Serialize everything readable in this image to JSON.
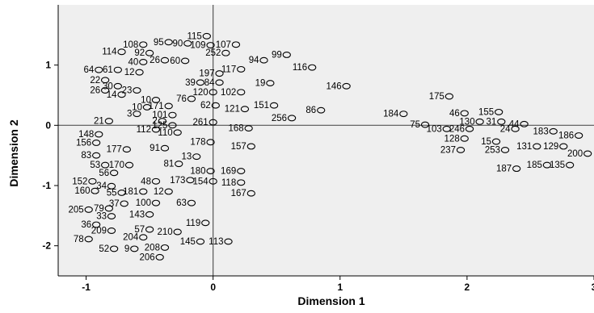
{
  "chart_data": {
    "type": "scatter",
    "title": "",
    "xlabel": "Dimension 1",
    "ylabel": "Dimension 2",
    "xlim": [
      -1.22,
      3.0
    ],
    "ylim": [
      -2.5,
      2.0
    ],
    "xticks": [
      -1,
      0,
      1,
      2,
      3
    ],
    "yticks": [
      -2,
      -1,
      0,
      1
    ],
    "reference_lines": {
      "x": 0,
      "y": 0
    },
    "plot_background": "#efefef",
    "marker_color": "#000000",
    "grid": false,
    "points": [
      {
        "label": "115",
        "x": -0.05,
        "y": 1.48
      },
      {
        "label": "108",
        "x": -0.55,
        "y": 1.34
      },
      {
        "label": "95",
        "x": -0.35,
        "y": 1.38
      },
      {
        "label": "90",
        "x": -0.2,
        "y": 1.36
      },
      {
        "label": "109",
        "x": -0.02,
        "y": 1.33
      },
      {
        "label": "107",
        "x": 0.18,
        "y": 1.34
      },
      {
        "label": "114",
        "x": -0.72,
        "y": 1.22
      },
      {
        "label": "92",
        "x": -0.5,
        "y": 1.2
      },
      {
        "label": "252",
        "x": 0.1,
        "y": 1.2
      },
      {
        "label": "99",
        "x": 0.58,
        "y": 1.17
      },
      {
        "label": "40",
        "x": -0.55,
        "y": 1.05
      },
      {
        "label": "26",
        "x": -0.38,
        "y": 1.08
      },
      {
        "label": "60",
        "x": -0.22,
        "y": 1.07
      },
      {
        "label": "94",
        "x": 0.4,
        "y": 1.08
      },
      {
        "label": "64",
        "x": -0.9,
        "y": 0.92
      },
      {
        "label": "61",
        "x": -0.75,
        "y": 0.92
      },
      {
        "label": "117",
        "x": 0.22,
        "y": 0.93
      },
      {
        "label": "116",
        "x": 0.78,
        "y": 0.96
      },
      {
        "label": "12",
        "x": -0.58,
        "y": 0.88
      },
      {
        "label": "197",
        "x": 0.05,
        "y": 0.86
      },
      {
        "label": "22",
        "x": -0.85,
        "y": 0.75
      },
      {
        "label": "39",
        "x": -0.1,
        "y": 0.71
      },
      {
        "label": "84",
        "x": 0.05,
        "y": 0.71
      },
      {
        "label": "19",
        "x": 0.45,
        "y": 0.7
      },
      {
        "label": "30",
        "x": -0.75,
        "y": 0.65
      },
      {
        "label": "23",
        "x": -0.6,
        "y": 0.58
      },
      {
        "label": "146",
        "x": 1.05,
        "y": 0.65
      },
      {
        "label": "26",
        "x": -0.85,
        "y": 0.58
      },
      {
        "label": "14",
        "x": -0.72,
        "y": 0.51
      },
      {
        "label": "120",
        "x": 0.0,
        "y": 0.55
      },
      {
        "label": "102",
        "x": 0.22,
        "y": 0.55
      },
      {
        "label": "175",
        "x": 1.86,
        "y": 0.48
      },
      {
        "label": "10",
        "x": -0.45,
        "y": 0.42
      },
      {
        "label": "76",
        "x": -0.17,
        "y": 0.44
      },
      {
        "label": "10",
        "x": -0.52,
        "y": 0.3
      },
      {
        "label": "171",
        "x": -0.35,
        "y": 0.32
      },
      {
        "label": "62",
        "x": 0.02,
        "y": 0.33
      },
      {
        "label": "151",
        "x": 0.48,
        "y": 0.33
      },
      {
        "label": "121",
        "x": 0.25,
        "y": 0.27
      },
      {
        "label": "86",
        "x": 0.85,
        "y": 0.25
      },
      {
        "label": "184",
        "x": 1.5,
        "y": 0.19
      },
      {
        "label": "46",
        "x": 1.98,
        "y": 0.2
      },
      {
        "label": "155",
        "x": 2.25,
        "y": 0.22
      },
      {
        "label": "3",
        "x": -0.6,
        "y": 0.19
      },
      {
        "label": "101",
        "x": -0.32,
        "y": 0.17
      },
      {
        "label": "256",
        "x": 0.62,
        "y": 0.12
      },
      {
        "label": "21",
        "x": -0.82,
        "y": 0.07
      },
      {
        "label": "2",
        "x": -0.4,
        "y": 0.07
      },
      {
        "label": "125",
        "x": -0.32,
        "y": 0.0
      },
      {
        "label": "261",
        "x": 0.0,
        "y": 0.05
      },
      {
        "label": "75",
        "x": 1.67,
        "y": 0.01
      },
      {
        "label": "130",
        "x": 2.1,
        "y": 0.06
      },
      {
        "label": "31",
        "x": 2.27,
        "y": 0.06
      },
      {
        "label": "44",
        "x": 2.45,
        "y": 0.02
      },
      {
        "label": "112",
        "x": -0.45,
        "y": -0.07
      },
      {
        "label": "110",
        "x": -0.28,
        "y": -0.12
      },
      {
        "label": "168",
        "x": 0.28,
        "y": -0.05
      },
      {
        "label": "103",
        "x": 1.84,
        "y": -0.06
      },
      {
        "label": "246",
        "x": 2.02,
        "y": -0.06
      },
      {
        "label": "24",
        "x": 2.38,
        "y": -0.06
      },
      {
        "label": "148",
        "x": -0.9,
        "y": -0.15
      },
      {
        "label": "183",
        "x": 2.68,
        "y": -0.1
      },
      {
        "label": "186",
        "x": 2.88,
        "y": -0.17
      },
      {
        "label": "156",
        "x": -0.92,
        "y": -0.29
      },
      {
        "label": "178",
        "x": -0.02,
        "y": -0.28
      },
      {
        "label": "128",
        "x": 1.98,
        "y": -0.22
      },
      {
        "label": "15",
        "x": 2.23,
        "y": -0.27
      },
      {
        "label": "157",
        "x": 0.3,
        "y": -0.35
      },
      {
        "label": "177",
        "x": -0.68,
        "y": -0.4
      },
      {
        "label": "91",
        "x": -0.38,
        "y": -0.38
      },
      {
        "label": "237",
        "x": 1.95,
        "y": -0.41
      },
      {
        "label": "253",
        "x": 2.3,
        "y": -0.41
      },
      {
        "label": "131",
        "x": 2.55,
        "y": -0.35
      },
      {
        "label": "129",
        "x": 2.76,
        "y": -0.35
      },
      {
        "label": "200",
        "x": 2.95,
        "y": -0.47
      },
      {
        "label": "83",
        "x": -0.92,
        "y": -0.5
      },
      {
        "label": "13",
        "x": -0.13,
        "y": -0.52
      },
      {
        "label": "53",
        "x": -0.85,
        "y": -0.66
      },
      {
        "label": "170",
        "x": -0.66,
        "y": -0.66
      },
      {
        "label": "81",
        "x": -0.27,
        "y": -0.64
      },
      {
        "label": "187",
        "x": 2.39,
        "y": -0.72
      },
      {
        "label": "185",
        "x": 2.63,
        "y": -0.66
      },
      {
        "label": "135",
        "x": 2.81,
        "y": -0.66
      },
      {
        "label": "56",
        "x": -0.78,
        "y": -0.79
      },
      {
        "label": "180",
        "x": -0.02,
        "y": -0.76
      },
      {
        "label": "169",
        "x": 0.22,
        "y": -0.76
      },
      {
        "label": "152",
        "x": -0.95,
        "y": -0.93
      },
      {
        "label": "48",
        "x": -0.45,
        "y": -0.93
      },
      {
        "label": "173",
        "x": -0.18,
        "y": -0.91
      },
      {
        "label": "154",
        "x": 0.0,
        "y": -0.93
      },
      {
        "label": "118",
        "x": 0.22,
        "y": -0.95
      },
      {
        "label": "34",
        "x": -0.8,
        "y": -1.01
      },
      {
        "label": "160",
        "x": -0.93,
        "y": -1.09
      },
      {
        "label": "55",
        "x": -0.72,
        "y": -1.12
      },
      {
        "label": "181",
        "x": -0.55,
        "y": -1.1
      },
      {
        "label": "12",
        "x": -0.35,
        "y": -1.1
      },
      {
        "label": "167",
        "x": 0.3,
        "y": -1.13
      },
      {
        "label": "37",
        "x": -0.7,
        "y": -1.3
      },
      {
        "label": "100",
        "x": -0.45,
        "y": -1.29
      },
      {
        "label": "63",
        "x": -0.17,
        "y": -1.29
      },
      {
        "label": "205",
        "x": -0.98,
        "y": -1.4
      },
      {
        "label": "79",
        "x": -0.82,
        "y": -1.38
      },
      {
        "label": "33",
        "x": -0.8,
        "y": -1.51
      },
      {
        "label": "143",
        "x": -0.5,
        "y": -1.48
      },
      {
        "label": "36",
        "x": -0.92,
        "y": -1.65
      },
      {
        "label": "119",
        "x": -0.06,
        "y": -1.62
      },
      {
        "label": "209",
        "x": -0.8,
        "y": -1.75
      },
      {
        "label": "57",
        "x": -0.5,
        "y": -1.73
      },
      {
        "label": "210",
        "x": -0.28,
        "y": -1.77
      },
      {
        "label": "78",
        "x": -0.98,
        "y": -1.89
      },
      {
        "label": "204",
        "x": -0.55,
        "y": -1.86
      },
      {
        "label": "145",
        "x": -0.1,
        "y": -1.93
      },
      {
        "label": "113",
        "x": 0.12,
        "y": -1.93
      },
      {
        "label": "52",
        "x": -0.78,
        "y": -2.05
      },
      {
        "label": "9",
        "x": -0.62,
        "y": -2.05
      },
      {
        "label": "208",
        "x": -0.38,
        "y": -2.03
      },
      {
        "label": "206",
        "x": -0.42,
        "y": -2.19
      }
    ]
  }
}
